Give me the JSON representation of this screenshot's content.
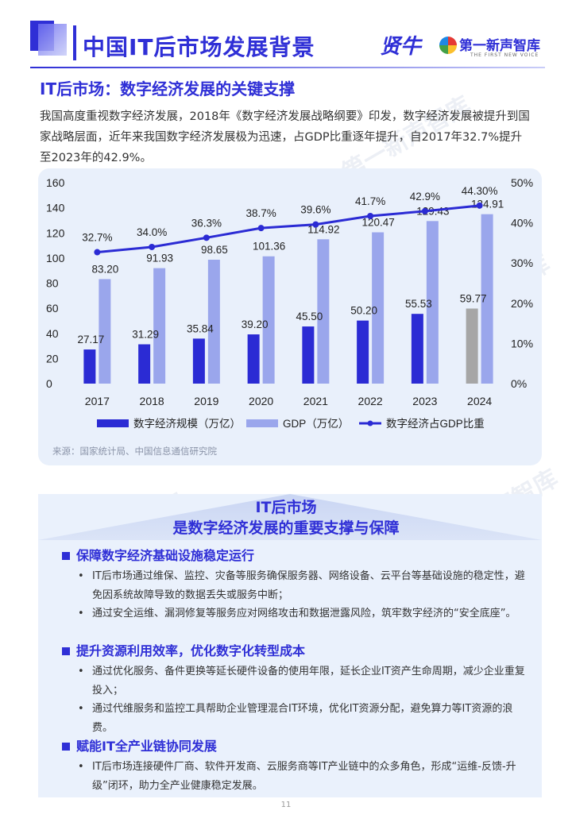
{
  "header": {
    "title": "中国IT后市场发展背景",
    "logo_brand": "贤牛",
    "logo_partner": "第一新声智库",
    "logo_partner_sub": "THE FIRST NEW VOICE"
  },
  "section": {
    "title": "IT后市场：数字经济发展的关键支撑",
    "intro": "我国高度重视数字经济发展，2018年《数字经济发展战略纲要》印发，数字经济发展被提升到国家战略层面，近年来我国数字经济发展极为迅速，占GDP比重逐年提升，自2017年32.7%提升至2023年的42.9%。"
  },
  "chart_data": {
    "type": "bar",
    "categories": [
      "2017",
      "2018",
      "2019",
      "2020",
      "2021",
      "2022",
      "2023",
      "2024"
    ],
    "series": [
      {
        "name": "数字经济规模（万亿）",
        "type": "bar",
        "values": [
          27.17,
          31.29,
          35.84,
          39.2,
          45.5,
          50.2,
          55.53,
          59.77
        ],
        "labels": [
          "27.17",
          "31.29",
          "35.84",
          "39.20",
          "45.50",
          "50.20",
          "55.53",
          "59.77"
        ]
      },
      {
        "name": "GDP（万亿）",
        "type": "bar",
        "values": [
          83.2,
          91.93,
          98.65,
          101.36,
          114.92,
          120.47,
          129.43,
          134.91
        ],
        "labels": [
          "83.20",
          "91.93",
          "98.65",
          "101.36",
          "114.92",
          "120.47",
          "129.43",
          "134.91"
        ]
      },
      {
        "name": "数字经济占GDP比重",
        "type": "line",
        "axis": "right",
        "values": [
          32.7,
          34.0,
          36.3,
          38.7,
          39.6,
          41.7,
          42.9,
          44.3
        ],
        "labels": [
          "32.7%",
          "34.0%",
          "36.3%",
          "38.7%",
          "39.6%",
          "41.7%",
          "42.9%",
          "44.30%"
        ]
      }
    ],
    "y_left": {
      "range": [
        0,
        160
      ],
      "ticks": [
        "0",
        "20",
        "40",
        "60",
        "80",
        "100",
        "120",
        "140",
        "160"
      ]
    },
    "y_right": {
      "range": [
        0,
        50
      ],
      "ticks": [
        "0%",
        "10%",
        "20%",
        "30%",
        "40%",
        "50%"
      ]
    },
    "highlight": {
      "category": "2024",
      "color": "#a6a6a6"
    },
    "legend_position": "bottom",
    "grid": false,
    "colors": {
      "digital": "#2b2bd4",
      "gdp": "#9aa6ec",
      "ratio": "#2b2bd4"
    }
  },
  "chart_source": "来源：国家统计局、中国信息通信研究院",
  "banner": {
    "line1": "IT后市场",
    "line2": "是数字经济发展的重要支撑与保障"
  },
  "blocks": [
    {
      "heading": "保障数字经济基础设施稳定运行",
      "bullets": [
        "IT后市场通过维保、监控、灾备等服务确保服务器、网络设备、云平台等基础设施的稳定性，避免因系统故障导致的数据丢失或服务中断；",
        "通过安全运维、漏洞修复等服务应对网络攻击和数据泄露风险，筑牢数字经济的“安全底座”。"
      ]
    },
    {
      "heading": "提升资源利用效率，优化数字化转型成本",
      "bullets": [
        "通过优化服务、备件更换等延长硬件设备的使用年限，延长企业IT资产生命周期，减少企业重复投入；",
        "通过代维服务和监控工具帮助企业管理混合IT环境，优化IT资源分配，避免算力等IT资源的浪费。"
      ]
    },
    {
      "heading": "赋能IT全产业链协同发展",
      "bullets": [
        "IT后市场连接硬件厂商、软件开发商、云服务商等IT产业链中的众多角色，形成“运维-反馈-升级”闭环，助力全产业健康稳定发展。"
      ]
    }
  ],
  "watermark": "第一新声智库",
  "page_number": "11"
}
